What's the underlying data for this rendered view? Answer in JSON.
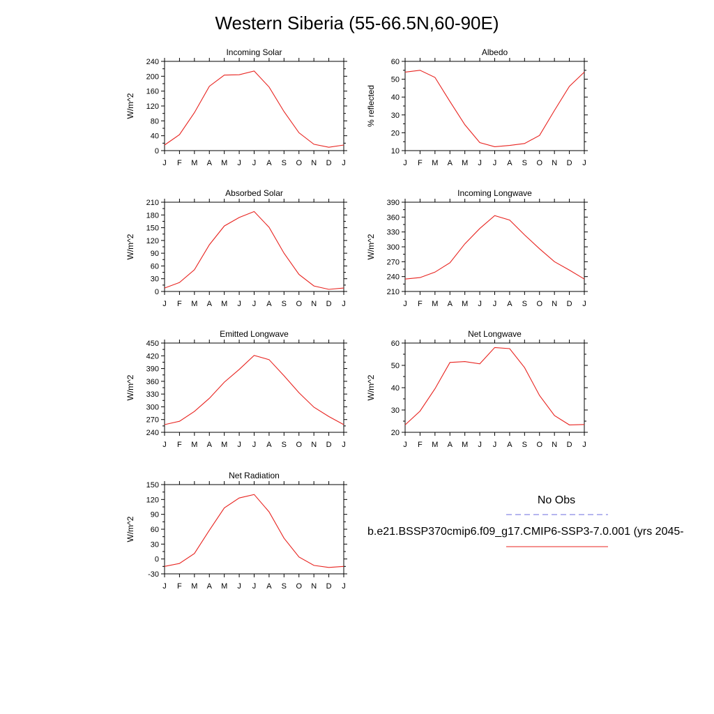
{
  "page": {
    "title": "Western Siberia (55-66.5N,60-90E)"
  },
  "months": [
    "J",
    "F",
    "M",
    "A",
    "M",
    "J",
    "J",
    "A",
    "S",
    "O",
    "N",
    "D",
    "J"
  ],
  "colors": {
    "model_line": "#e8231f",
    "obs_line": "#6b6bdf",
    "axis": "#000000"
  },
  "legend": {
    "obs_label": "No Obs",
    "model_label": "b.e21.BSSP370cmip6.f09_g17.CMIP6-SSP3-7.0.001 (yrs 2045-"
  },
  "chart_data": [
    {
      "type": "line",
      "title": "Incoming Solar",
      "ylabel": "W/m^2",
      "ylim": [
        0,
        240
      ],
      "yticks": [
        0,
        40,
        80,
        120,
        160,
        200,
        240
      ],
      "series": [
        {
          "values": [
            15,
            43,
            102,
            173,
            203,
            204,
            214,
            171,
            105,
            48,
            17,
            9,
            15
          ]
        }
      ]
    },
    {
      "type": "line",
      "title": "Albedo",
      "ylabel": "% reflected",
      "ylim": [
        10,
        60
      ],
      "yticks": [
        10,
        20,
        30,
        40,
        50,
        60
      ],
      "series": [
        {
          "values": [
            54,
            55,
            51,
            37.5,
            24.5,
            14.5,
            12.2,
            12.9,
            14,
            18.5,
            32.5,
            46,
            54
          ]
        }
      ]
    },
    {
      "type": "line",
      "title": "Absorbed Solar",
      "ylabel": "W/m^2",
      "ylim": [
        0,
        210
      ],
      "yticks": [
        0,
        30,
        60,
        90,
        120,
        150,
        180,
        210
      ],
      "series": [
        {
          "values": [
            8,
            21,
            51,
            110,
            154,
            174,
            188,
            151,
            90,
            40,
            13,
            5,
            8
          ]
        }
      ]
    },
    {
      "type": "line",
      "title": "Incoming Longwave",
      "ylabel": "W/m^2",
      "ylim": [
        210,
        390
      ],
      "yticks": [
        210,
        240,
        270,
        300,
        330,
        360,
        390
      ],
      "series": [
        {
          "values": [
            235,
            238,
            249,
            268,
            306,
            337,
            363,
            354,
            324,
            296,
            270,
            253,
            235
          ]
        }
      ]
    },
    {
      "type": "line",
      "title": "Emitted Longwave",
      "ylabel": "W/m^2",
      "ylim": [
        240,
        450
      ],
      "yticks": [
        240,
        270,
        300,
        330,
        360,
        390,
        420,
        450
      ],
      "series": [
        {
          "values": [
            258,
            266,
            289,
            320,
            358,
            388,
            421,
            411,
            373,
            333,
            299,
            277,
            258
          ]
        }
      ]
    },
    {
      "type": "line",
      "title": "Net Longwave",
      "ylabel": "W/m^2",
      "ylim": [
        20,
        60
      ],
      "yticks": [
        20,
        30,
        40,
        50,
        60
      ],
      "series": [
        {
          "values": [
            23.3,
            29.5,
            39.5,
            51.3,
            51.7,
            50.7,
            58,
            57.5,
            49,
            36.5,
            27.5,
            23.3,
            23.5
          ]
        }
      ]
    },
    {
      "type": "line",
      "title": "Net Radiation",
      "ylabel": "W/m^2",
      "ylim": [
        -30,
        150
      ],
      "yticks": [
        -30,
        0,
        30,
        60,
        90,
        120,
        150
      ],
      "series": [
        {
          "values": [
            -15,
            -9,
            11,
            58,
            103,
            123,
            130,
            95,
            42,
            4,
            -13,
            -17,
            -15
          ]
        }
      ]
    }
  ]
}
